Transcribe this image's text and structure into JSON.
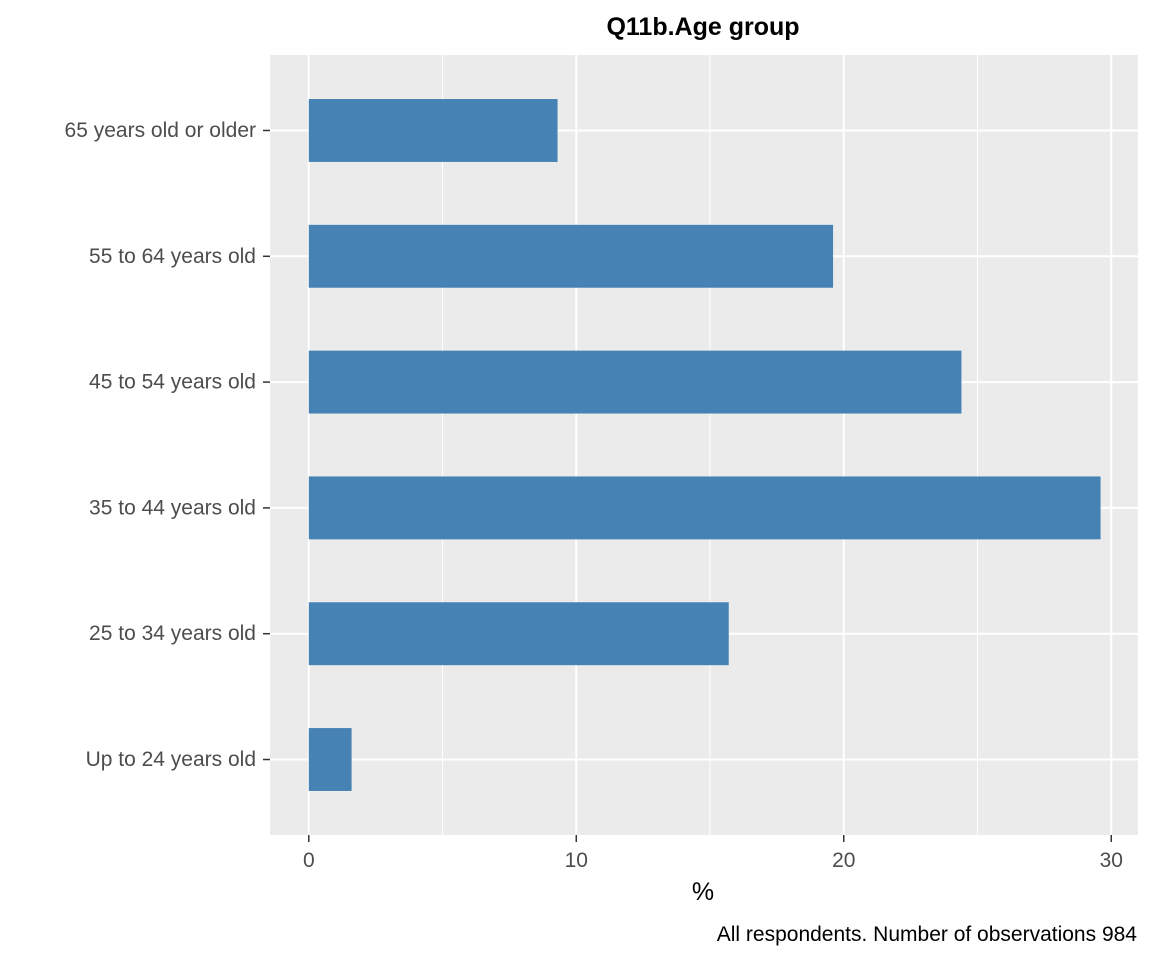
{
  "chart_data": {
    "type": "bar",
    "orientation": "horizontal",
    "title": "Q11b.Age group",
    "xlabel": "%",
    "ylabel": "",
    "caption": "All respondents. Number of observations 984",
    "categories": [
      "Up to 24 years old",
      "25 to 34 years old",
      "35 to 44 years old",
      "45 to 54 years old",
      "55 to 64 years old",
      "65 years old or older"
    ],
    "values": [
      1.6,
      15.7,
      29.6,
      24.4,
      19.6,
      9.3
    ],
    "xlim": [
      -1.45,
      31.0
    ],
    "xticks": [
      "0",
      "10",
      "20",
      "30"
    ],
    "grid": true,
    "legend": "none",
    "colors": {
      "bar": "#4682b4",
      "panel": "#ebebeb",
      "grid": "#ffffff"
    }
  }
}
